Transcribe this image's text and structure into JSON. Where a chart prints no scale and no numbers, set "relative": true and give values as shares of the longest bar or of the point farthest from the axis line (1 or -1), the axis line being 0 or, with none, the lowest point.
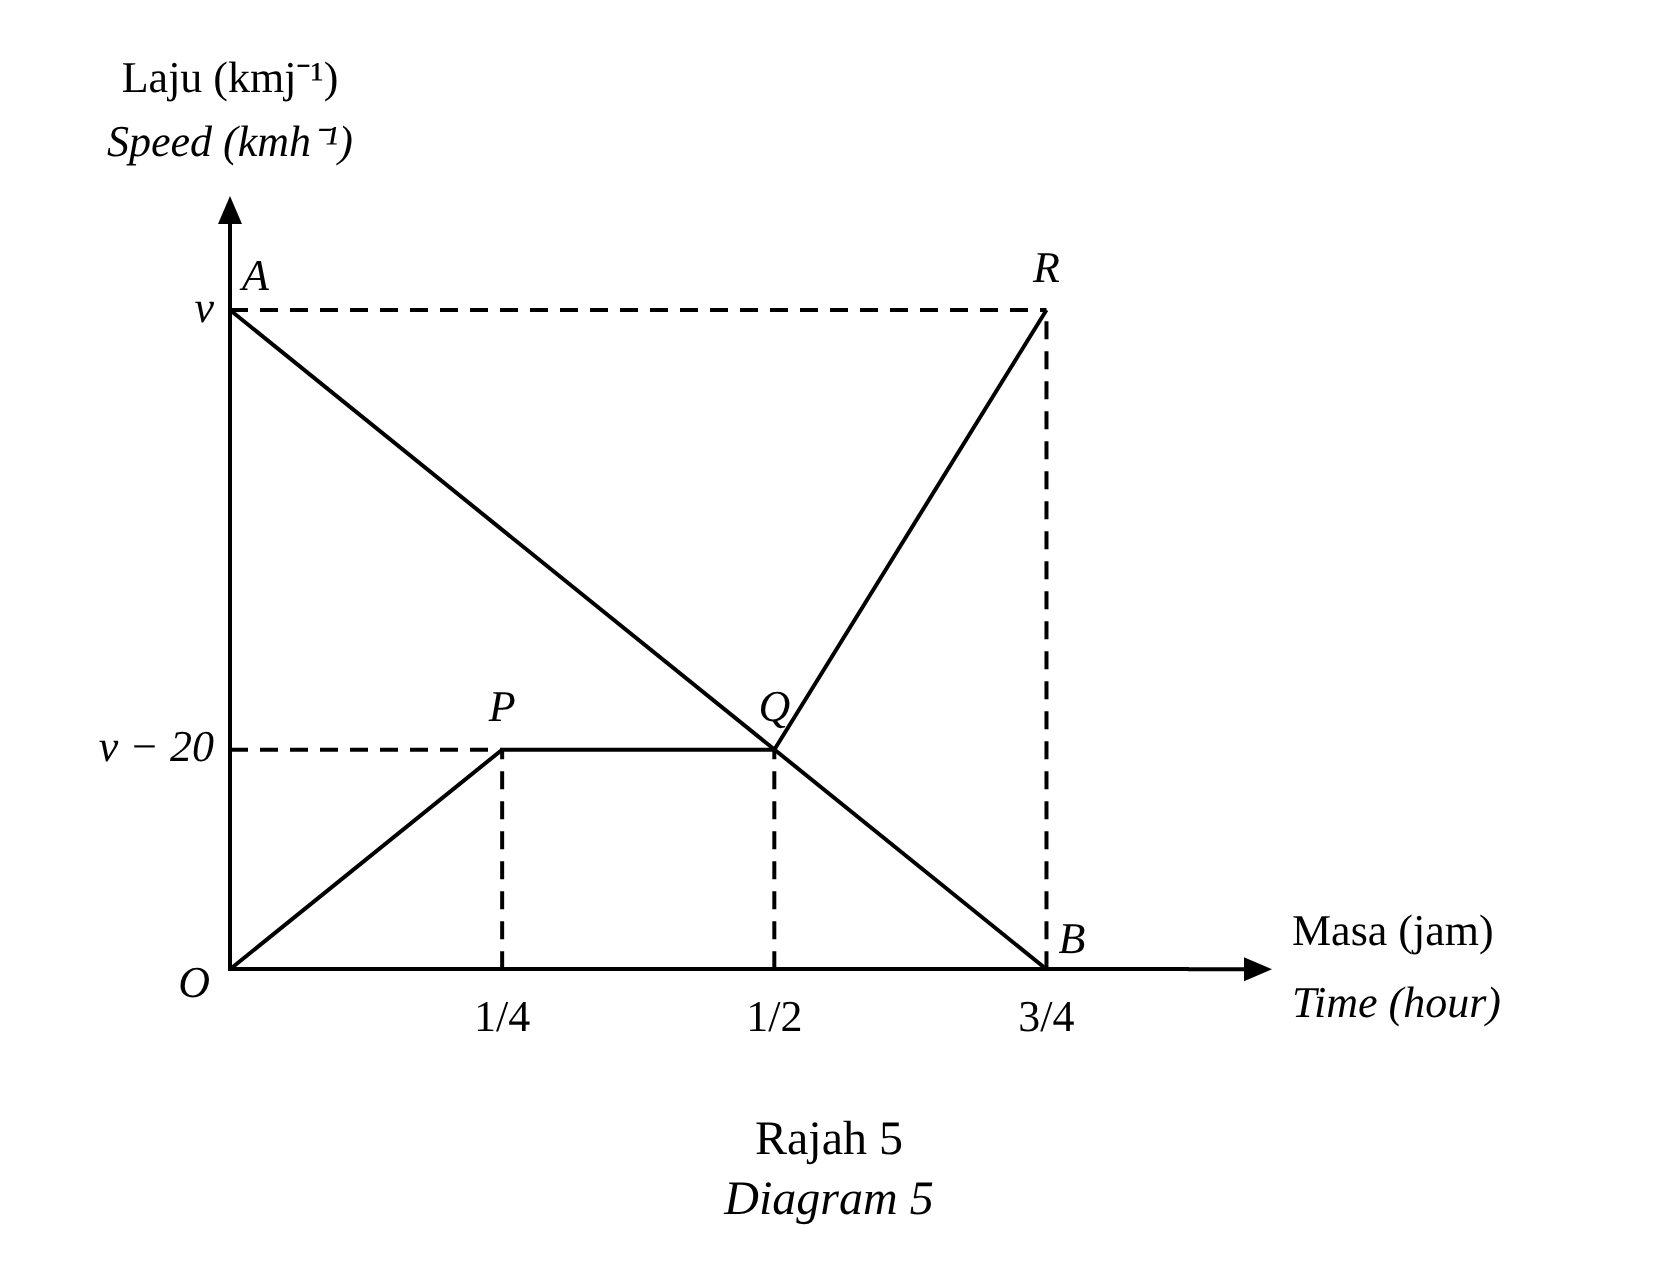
{
  "chart_data": {
    "type": "line",
    "title": "Rajah 5\nDiagram 5",
    "xlabel": "Masa (jam)\nTime (hour)",
    "ylabel": "Laju (kmj⁻¹)\nSpeed (kmh⁻¹)",
    "relative": true,
    "xlim": [
      0,
      0.88
    ],
    "xticks": [
      {
        "value": 0.25,
        "label": "1/4"
      },
      {
        "value": 0.5,
        "label": "1/2"
      },
      {
        "value": 0.75,
        "label": "3/4"
      }
    ],
    "grid": false,
    "legend": false,
    "marker": "none",
    "series": [
      {
        "x": [
          0,
          0.25,
          0.5,
          0.75
        ],
        "values": [
          0,
          0.333,
          0.333,
          1
        ],
        "color": "#000000",
        "line_style": "solid"
      },
      {
        "x": [
          0,
          0.75
        ],
        "values": [
          1,
          0
        ],
        "color": "#000000",
        "line_style": "solid"
      },
      {
        "x": [
          0,
          0.75
        ],
        "values": [
          1,
          1
        ],
        "color": "#000000",
        "line_style": "dashed"
      },
      {
        "x": [
          0,
          0.25
        ],
        "values": [
          0.333,
          0.333
        ],
        "color": "#000000",
        "line_style": "dashed"
      },
      {
        "x": [
          0.25,
          0.25
        ],
        "values": [
          0,
          0.333
        ],
        "color": "#000000",
        "line_style": "dashed"
      },
      {
        "x": [
          0.5,
          0.5
        ],
        "values": [
          0,
          0.333
        ],
        "color": "#000000",
        "line_style": "dashed"
      },
      {
        "x": [
          0.75,
          0.75
        ],
        "values": [
          0,
          1
        ],
        "color": "#000000",
        "line_style": "dashed"
      }
    ],
    "annotations": [
      {
        "text": "O",
        "x": 0,
        "y": 0
      },
      {
        "text": "A",
        "x": 0,
        "y": 1
      },
      {
        "text": "P",
        "x": 0.25,
        "y": 0.333
      },
      {
        "text": "Q",
        "x": 0.5,
        "y": 0.333
      },
      {
        "text": "R",
        "x": 0.75,
        "y": 1
      },
      {
        "text": "B",
        "x": 0.75,
        "y": 0
      },
      {
        "text": "v",
        "x": 0,
        "y": 1
      },
      {
        "text": "v − 20",
        "x": 0,
        "y": 0.333
      }
    ]
  }
}
